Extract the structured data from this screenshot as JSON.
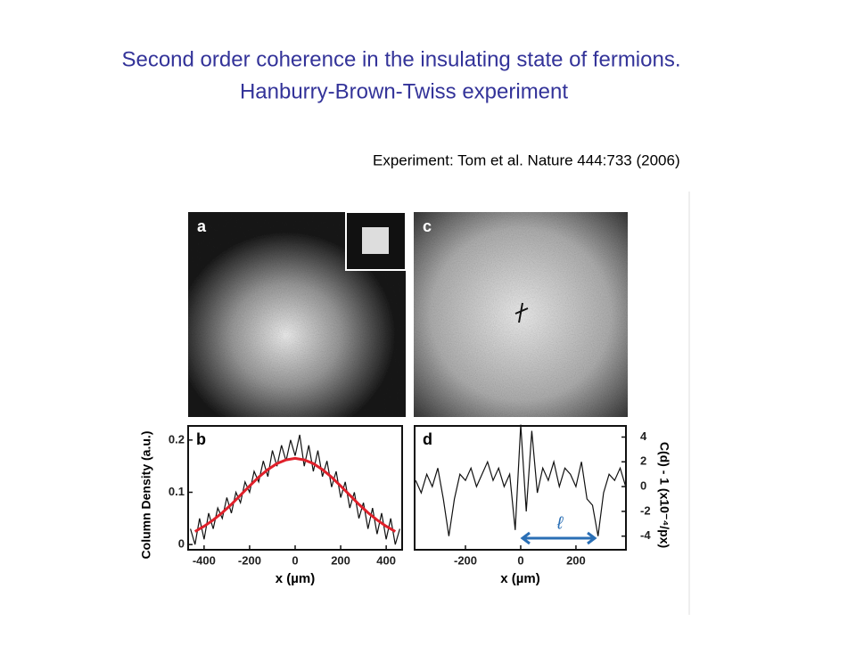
{
  "title_lines": [
    "Second order coherence in the insulating state of fermions.",
    "Hanburry-Brown-Twiss experiment"
  ],
  "citation": "Experiment: Tom et al. Nature 444:733 (2006)",
  "image_labels": [
    "a",
    "c"
  ],
  "chart_data": [
    {
      "type": "line",
      "panel_label": "b",
      "ylabel": "Column Density (a.u.)",
      "xlabel": "x (µm)",
      "xlim": [
        -470,
        470
      ],
      "ylim": [
        -0.01,
        0.227
      ],
      "xticks": [
        -400,
        -200,
        0,
        200,
        400
      ],
      "yticks": [
        0,
        0.1,
        0.2
      ],
      "y_axis_side": "left",
      "series": [
        {
          "color": "#111111",
          "x": [
            -460,
            -440,
            -420,
            -400,
            -380,
            -360,
            -340,
            -320,
            -300,
            -280,
            -260,
            -240,
            -220,
            -200,
            -180,
            -160,
            -140,
            -120,
            -100,
            -80,
            -60,
            -40,
            -20,
            0,
            20,
            40,
            60,
            80,
            100,
            120,
            140,
            160,
            180,
            200,
            220,
            240,
            260,
            280,
            300,
            320,
            340,
            360,
            380,
            400,
            420,
            440,
            460
          ],
          "values": [
            0.03,
            0.0,
            0.05,
            0.01,
            0.06,
            0.03,
            0.07,
            0.05,
            0.09,
            0.06,
            0.1,
            0.08,
            0.12,
            0.1,
            0.14,
            0.12,
            0.16,
            0.13,
            0.18,
            0.15,
            0.19,
            0.16,
            0.2,
            0.17,
            0.21,
            0.15,
            0.19,
            0.14,
            0.18,
            0.13,
            0.16,
            0.11,
            0.14,
            0.09,
            0.12,
            0.07,
            0.1,
            0.05,
            0.08,
            0.03,
            0.07,
            0.02,
            0.06,
            0.01,
            0.05,
            0.0,
            0.03
          ]
        },
        {
          "color": "#e0202a",
          "x": [
            -440,
            -400,
            -360,
            -320,
            -280,
            -240,
            -200,
            -160,
            -120,
            -80,
            -40,
            0,
            40,
            80,
            120,
            160,
            200,
            240,
            280,
            320,
            360,
            400,
            440
          ],
          "values": [
            0.025,
            0.035,
            0.047,
            0.061,
            0.077,
            0.0945,
            0.112,
            0.129,
            0.1435,
            0.155,
            0.162,
            0.165,
            0.162,
            0.155,
            0.1435,
            0.129,
            0.112,
            0.0945,
            0.077,
            0.061,
            0.047,
            0.035,
            0.025
          ]
        }
      ]
    },
    {
      "type": "line",
      "panel_label": "d",
      "ylabel": "C(d) - 1  (x10⁻⁴/px)",
      "xlabel": "x (µm)",
      "annotation": "ℓ",
      "xlim": [
        -384,
        381
      ],
      "ylim": [
        -5.1,
        4.9
      ],
      "xticks": [
        -200,
        0,
        200
      ],
      "yticks": [
        -4,
        -2,
        0,
        2,
        4
      ],
      "y_axis_side": "right",
      "series": [
        {
          "color": "#111111",
          "x": [
            -380,
            -360,
            -340,
            -320,
            -300,
            -280,
            -260,
            -240,
            -220,
            -200,
            -180,
            -160,
            -140,
            -120,
            -100,
            -80,
            -60,
            -40,
            -20,
            0,
            20,
            40,
            60,
            80,
            100,
            120,
            140,
            160,
            180,
            200,
            220,
            240,
            260,
            280,
            300,
            320,
            340,
            360,
            380
          ],
          "values": [
            0.5,
            -0.5,
            1,
            0,
            1.5,
            -1,
            -4,
            -1,
            1,
            0.5,
            1.5,
            0,
            1,
            2,
            0.5,
            1.5,
            0,
            1,
            -3.5,
            5,
            -2,
            4.5,
            -0.5,
            1.5,
            0.5,
            2,
            0,
            1.5,
            1,
            0,
            2,
            -1,
            -1.5,
            -4,
            -0.5,
            1,
            0.5,
            1.5,
            0
          ]
        }
      ]
    }
  ]
}
